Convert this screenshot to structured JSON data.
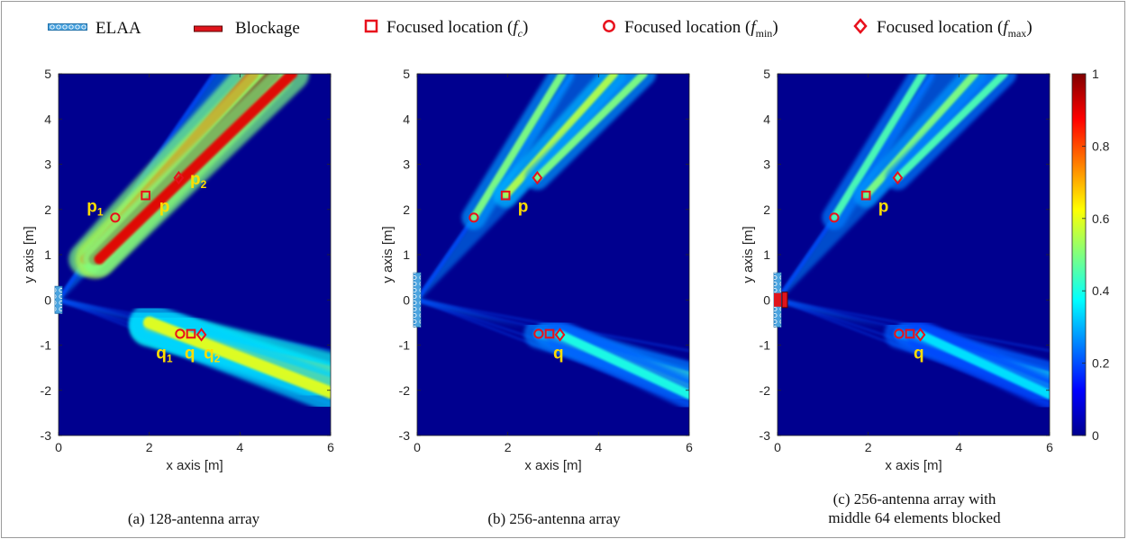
{
  "legend": {
    "elaa": "ELAA",
    "blockage": "Blockage",
    "fc_prefix": "Focused location (",
    "fc_sym": "f",
    "fc_sub": "c",
    "fmin_prefix": "Focused location (",
    "fmin_sym": "f",
    "fmin_sub": "min",
    "fmax_prefix": "Focused location (",
    "fmax_sym": "f",
    "fmax_sub": "max",
    "suffix": ")"
  },
  "colors": {
    "marker": "#e8101c",
    "label": "#ffdd00",
    "array_fill": "#4aa3df",
    "blockage": "#e0141c",
    "background": "#00008f"
  },
  "colorbar": {
    "ticks": [
      "0",
      "0.2",
      "0.4",
      "0.6",
      "0.8",
      "1"
    ],
    "range": [
      0,
      1
    ],
    "colormap": "jet"
  },
  "chart_data": [
    {
      "type": "heatmap",
      "xlabel": "x axis [m]",
      "ylabel": "y axis [m]",
      "xlim": [
        0,
        6
      ],
      "ylim": [
        -3,
        5
      ],
      "xticks": [
        "0",
        "2",
        "4",
        "6"
      ],
      "yticks": [
        "-3",
        "-2",
        "-1",
        "0",
        "1",
        "2",
        "3",
        "4",
        "5"
      ],
      "caption": "(a) 128-antenna array",
      "array": {
        "y_min": -0.3,
        "y_max": 0.3,
        "blocked": false
      },
      "focus_groups": [
        {
          "label": "p",
          "points": {
            "fmin": [
              1.25,
              1.82
            ],
            "fc": [
              1.92,
              2.31
            ],
            "fmax": [
              2.65,
              2.7
            ]
          },
          "beams": [
            {
              "x": [
                0.6,
                4.3
              ],
              "y": [
                0.9,
                5.0
              ],
              "intensity": 0.9,
              "width": 0.07
            },
            {
              "x": [
                0.8,
                4.75
              ],
              "y": [
                0.9,
                5.0
              ],
              "intensity": 1.0,
              "width": 0.08
            },
            {
              "x": [
                0.9,
                5.15
              ],
              "y": [
                0.9,
                5.0
              ],
              "intensity": 0.9,
              "width": 0.07
            }
          ]
        },
        {
          "label": "q",
          "points": {
            "fmin": [
              2.68,
              -0.75
            ],
            "fc": [
              2.92,
              -0.75
            ],
            "fmax": [
              3.15,
              -0.77
            ]
          },
          "beams": [
            {
              "x": [
                2.0,
                6.0
              ],
              "y": [
                -0.6,
                -1.6
              ],
              "intensity": 0.7,
              "width": 0.08
            },
            {
              "x": [
                2.0,
                6.0
              ],
              "y": [
                -0.55,
                -1.85
              ],
              "intensity": 0.65,
              "width": 0.08
            },
            {
              "x": [
                2.0,
                6.0
              ],
              "y": [
                -0.5,
                -2.05
              ],
              "intensity": 0.6,
              "width": 0.08
            }
          ]
        }
      ],
      "labels": [
        {
          "text": "p",
          "sub": "1",
          "x": 0.62,
          "y": 1.95
        },
        {
          "text": "p",
          "sub": "",
          "x": 2.22,
          "y": 1.95
        },
        {
          "text": "p",
          "sub": "2",
          "x": 2.9,
          "y": 2.55
        },
        {
          "text": "q",
          "sub": "1",
          "x": 2.15,
          "y": -1.3
        },
        {
          "text": "q",
          "sub": "",
          "x": 2.78,
          "y": -1.3
        },
        {
          "text": "q",
          "sub": "2",
          "x": 3.2,
          "y": -1.3
        }
      ]
    },
    {
      "type": "heatmap",
      "xlabel": "x axis [m]",
      "ylabel": "y axis [m]",
      "xlim": [
        0,
        6
      ],
      "ylim": [
        -3,
        5
      ],
      "xticks": [
        "0",
        "2",
        "4",
        "6"
      ],
      "yticks": [
        "-3",
        "-2",
        "-1",
        "0",
        "1",
        "2",
        "3",
        "4",
        "5"
      ],
      "caption": "(b) 256-antenna array",
      "array": {
        "y_min": -0.6,
        "y_max": 0.6,
        "blocked": false
      },
      "focus_groups": [
        {
          "label": "p",
          "points": {
            "fmin": [
              1.25,
              1.82
            ],
            "fc": [
              1.95,
              2.31
            ],
            "fmax": [
              2.65,
              2.7
            ]
          },
          "beams": [
            {
              "x": [
                1.25,
                3.2
              ],
              "y": [
                1.82,
                5.0
              ],
              "intensity": 0.5,
              "width": 0.05
            },
            {
              "x": [
                1.95,
                4.35
              ],
              "y": [
                2.31,
                5.0
              ],
              "intensity": 0.55,
              "width": 0.05
            },
            {
              "x": [
                2.65,
                5.0
              ],
              "y": [
                2.7,
                5.0
              ],
              "intensity": 0.5,
              "width": 0.05
            }
          ]
        },
        {
          "label": "q",
          "points": {
            "fmin": [
              2.68,
              -0.75
            ],
            "fc": [
              2.92,
              -0.75
            ],
            "fmax": [
              3.15,
              -0.77
            ]
          },
          "beams": [
            {
              "x": [
                2.68,
                6.0
              ],
              "y": [
                -0.75,
                -1.7
              ],
              "intensity": 0.45,
              "width": 0.06
            },
            {
              "x": [
                2.92,
                6.0
              ],
              "y": [
                -0.75,
                -1.95
              ],
              "intensity": 0.45,
              "width": 0.06
            },
            {
              "x": [
                3.15,
                6.0
              ],
              "y": [
                -0.77,
                -2.1
              ],
              "intensity": 0.4,
              "width": 0.06
            }
          ]
        }
      ],
      "labels": [
        {
          "text": "p",
          "sub": "",
          "x": 2.22,
          "y": 1.95
        },
        {
          "text": "q",
          "sub": "",
          "x": 3.0,
          "y": -1.3
        }
      ]
    },
    {
      "type": "heatmap",
      "xlabel": "x axis [m]",
      "ylabel": "y axis [m]",
      "xlim": [
        0,
        6
      ],
      "ylim": [
        -3,
        5
      ],
      "xticks": [
        "0",
        "2",
        "4",
        "6"
      ],
      "yticks": [
        "-3",
        "-2",
        "-1",
        "0",
        "1",
        "2",
        "3",
        "4",
        "5"
      ],
      "caption_lines": [
        "(c) 256-antenna array with",
        "middle 64 elements blocked"
      ],
      "array": {
        "y_min": -0.6,
        "y_max": 0.6,
        "blocked": true,
        "block_y_min": -0.15,
        "block_y_max": 0.15
      },
      "focus_groups": [
        {
          "label": "p",
          "points": {
            "fmin": [
              1.25,
              1.82
            ],
            "fc": [
              1.95,
              2.31
            ],
            "fmax": [
              2.65,
              2.7
            ]
          },
          "beams": [
            {
              "x": [
                1.25,
                3.2
              ],
              "y": [
                1.82,
                5.0
              ],
              "intensity": 0.45,
              "width": 0.05
            },
            {
              "x": [
                1.95,
                4.35
              ],
              "y": [
                2.31,
                5.0
              ],
              "intensity": 0.5,
              "width": 0.05
            },
            {
              "x": [
                2.65,
                5.0
              ],
              "y": [
                2.7,
                5.0
              ],
              "intensity": 0.45,
              "width": 0.05
            }
          ]
        },
        {
          "label": "q",
          "points": {
            "fmin": [
              2.68,
              -0.75
            ],
            "fc": [
              2.92,
              -0.75
            ],
            "fmax": [
              3.15,
              -0.77
            ]
          },
          "beams": [
            {
              "x": [
                2.68,
                6.0
              ],
              "y": [
                -0.75,
                -1.7
              ],
              "intensity": 0.4,
              "width": 0.06
            },
            {
              "x": [
                2.92,
                6.0
              ],
              "y": [
                -0.75,
                -1.95
              ],
              "intensity": 0.4,
              "width": 0.06
            },
            {
              "x": [
                3.15,
                6.0
              ],
              "y": [
                -0.77,
                -2.1
              ],
              "intensity": 0.35,
              "width": 0.06
            }
          ]
        }
      ],
      "labels": [
        {
          "text": "p",
          "sub": "",
          "x": 2.22,
          "y": 1.95
        },
        {
          "text": "q",
          "sub": "",
          "x": 3.0,
          "y": -1.3
        }
      ]
    }
  ]
}
